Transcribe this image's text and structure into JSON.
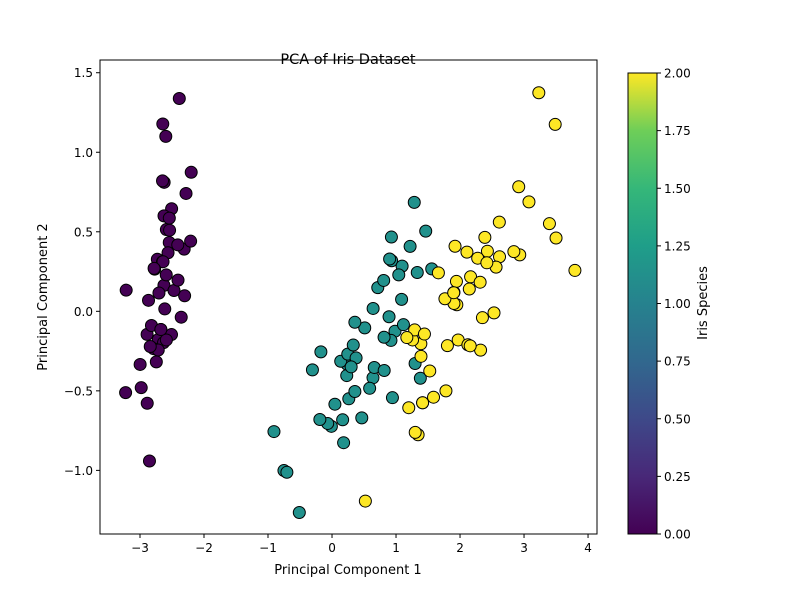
{
  "chart_data": {
    "type": "scatter",
    "title": "PCA of Iris Dataset",
    "xlabel": "Principal Component 1",
    "ylabel": "Principal Component 2",
    "xlim": [
      -3.625,
      4.14
    ],
    "ylim": [
      -1.4,
      1.58
    ],
    "xticks": [
      -3,
      -2,
      -1,
      0,
      1,
      2,
      3,
      4
    ],
    "xtick_labels": [
      "−3",
      "−2",
      "−1",
      "0",
      "1",
      "2",
      "3",
      "4"
    ],
    "yticks": [
      -1.0,
      -0.5,
      0.0,
      0.5,
      1.0,
      1.5
    ],
    "ytick_labels": [
      "−1.0",
      "−0.5",
      "0.0",
      "0.5",
      "1.0",
      "1.5"
    ],
    "grid": false,
    "colormap": "viridis",
    "colorbar": {
      "label": "Iris Species",
      "range": [
        0,
        2
      ],
      "ticks": [
        0,
        0.25,
        0.5,
        0.75,
        1.0,
        1.25,
        1.5,
        1.75,
        2.0
      ],
      "tick_labels": [
        "0.00",
        "0.25",
        "0.50",
        "0.75",
        "1.00",
        "1.25",
        "1.50",
        "1.75",
        "2.00"
      ]
    },
    "marker_edge_color": "#000000",
    "series": [
      {
        "class_value": 0,
        "color": "#440154",
        "points": [
          [
            -2.684,
            0.319
          ],
          [
            -2.714,
            -0.177
          ],
          [
            -2.889,
            -0.145
          ],
          [
            -2.745,
            -0.318
          ],
          [
            -2.729,
            0.327
          ],
          [
            -2.281,
            0.741
          ],
          [
            -2.821,
            -0.089
          ],
          [
            -2.626,
            0.163
          ],
          [
            -2.887,
            -0.578
          ],
          [
            -2.674,
            -0.114
          ],
          [
            -2.506,
            0.645
          ],
          [
            -2.613,
            0.015
          ],
          [
            -2.787,
            -0.235
          ],
          [
            -3.225,
            -0.511
          ],
          [
            -2.644,
            1.178
          ],
          [
            -2.386,
            1.338
          ],
          [
            -2.623,
            0.811
          ],
          [
            -2.648,
            0.312
          ],
          [
            -2.2,
            0.874
          ],
          [
            -2.588,
            0.514
          ],
          [
            -2.31,
            0.391
          ],
          [
            -2.543,
            0.433
          ],
          [
            -3.216,
            0.133
          ],
          [
            -2.303,
            0.098
          ],
          [
            -2.356,
            -0.037
          ],
          [
            -2.508,
            -0.146
          ],
          [
            -2.469,
            0.131
          ],
          [
            -2.562,
            0.368
          ],
          [
            -2.64,
            0.312
          ],
          [
            -2.632,
            -0.197
          ],
          [
            -2.588,
            -0.18
          ],
          [
            -2.41,
            0.418
          ],
          [
            -2.648,
            0.82
          ],
          [
            -2.597,
            1.1
          ],
          [
            -2.674,
            -0.114
          ],
          [
            -2.867,
            0.069
          ],
          [
            -2.625,
            0.6
          ],
          [
            -2.981,
            -0.48
          ],
          [
            -2.59,
            0.229
          ],
          [
            -2.771,
            0.265
          ],
          [
            -2.852,
            -0.941
          ],
          [
            -2.998,
            -0.334
          ],
          [
            -2.406,
            0.196
          ],
          [
            -2.209,
            0.441
          ],
          [
            -2.715,
            -0.243
          ],
          [
            -2.538,
            0.51
          ],
          [
            -2.84,
            -0.221
          ],
          [
            -2.542,
            0.586
          ],
          [
            -2.704,
            0.115
          ],
          [
            -2.78,
            0.27
          ]
        ]
      },
      {
        "class_value": 1,
        "color": "#21918c",
        "points": [
          [
            1.285,
            0.685
          ],
          [
            0.932,
            0.318
          ],
          [
            1.464,
            0.504
          ],
          [
            0.181,
            -0.826
          ],
          [
            1.087,
            0.075
          ],
          [
            0.64,
            -0.418
          ],
          [
            1.095,
            0.284
          ],
          [
            -0.751,
            -1.001
          ],
          [
            1.043,
            0.229
          ],
          [
            -0.01,
            -0.723
          ],
          [
            -0.511,
            -1.265
          ],
          [
            0.511,
            -0.104
          ],
          [
            0.262,
            -0.55
          ],
          [
            0.984,
            -0.125
          ],
          [
            -0.174,
            -0.255
          ],
          [
            0.928,
            0.467
          ],
          [
            0.66,
            -0.353
          ],
          [
            0.236,
            -0.333
          ],
          [
            0.944,
            -0.543
          ],
          [
            0.045,
            -0.584
          ],
          [
            1.116,
            -0.084
          ],
          [
            0.357,
            -0.069
          ],
          [
            1.298,
            -0.328
          ],
          [
            0.921,
            -0.183
          ],
          [
            0.715,
            0.149
          ],
          [
            0.9,
            0.329
          ],
          [
            1.332,
            0.244
          ],
          [
            1.558,
            0.267
          ],
          [
            0.813,
            -0.163
          ],
          [
            -0.306,
            -0.368
          ],
          [
            -0.068,
            -0.705
          ],
          [
            -0.19,
            -0.68
          ],
          [
            0.136,
            -0.314
          ],
          [
            1.38,
            -0.421
          ],
          [
            0.588,
            -0.484
          ],
          [
            0.807,
            0.194
          ],
          [
            1.22,
            0.408
          ],
          [
            0.815,
            -0.372
          ],
          [
            0.246,
            -0.269
          ],
          [
            0.166,
            -0.682
          ],
          [
            0.465,
            -0.67
          ],
          [
            0.891,
            -0.034
          ],
          [
            0.23,
            -0.404
          ],
          [
            -0.705,
            -1.012
          ],
          [
            0.357,
            -0.504
          ],
          [
            0.332,
            -0.212
          ],
          [
            0.376,
            -0.293
          ],
          [
            0.642,
            0.018
          ],
          [
            -0.907,
            -0.756
          ],
          [
            0.299,
            -0.349
          ]
        ]
      },
      {
        "class_value": 2,
        "color": "#fde725",
        "points": [
          [
            2.531,
            -0.01
          ],
          [
            1.415,
            -0.575
          ],
          [
            2.617,
            0.343
          ],
          [
            1.971,
            -0.18
          ],
          [
            2.35,
            -0.04
          ],
          [
            3.397,
            0.551
          ],
          [
            0.521,
            -1.193
          ],
          [
            2.933,
            0.355
          ],
          [
            2.321,
            -0.244
          ],
          [
            2.917,
            0.783
          ],
          [
            1.662,
            0.242
          ],
          [
            1.803,
            -0.216
          ],
          [
            2.165,
            0.217
          ],
          [
            1.345,
            -0.776
          ],
          [
            1.586,
            -0.54
          ],
          [
            1.905,
            0.119
          ],
          [
            1.95,
            0.041
          ],
          [
            3.487,
            1.175
          ],
          [
            3.795,
            0.257
          ],
          [
            1.3,
            -0.761
          ],
          [
            2.428,
            0.378
          ],
          [
            1.199,
            -0.606
          ],
          [
            3.5,
            0.461
          ],
          [
            1.388,
            -0.204
          ],
          [
            2.276,
            0.334
          ],
          [
            2.614,
            0.561
          ],
          [
            1.258,
            -0.18
          ],
          [
            1.291,
            -0.117
          ],
          [
            2.123,
            -0.21
          ],
          [
            2.388,
            0.465
          ],
          [
            2.841,
            0.375
          ],
          [
            3.231,
            1.374
          ],
          [
            2.159,
            -0.217
          ],
          [
            1.444,
            -0.143
          ],
          [
            1.78,
            -0.5
          ],
          [
            3.077,
            0.688
          ],
          [
            2.145,
            0.14
          ],
          [
            1.905,
            0.049
          ],
          [
            1.169,
            -0.165
          ],
          [
            2.108,
            0.372
          ],
          [
            2.314,
            0.183
          ],
          [
            1.922,
            0.409
          ],
          [
            1.415,
            -0.575
          ],
          [
            2.563,
            0.278
          ],
          [
            2.419,
            0.305
          ],
          [
            1.944,
            0.188
          ],
          [
            1.527,
            -0.375
          ],
          [
            1.764,
            0.079
          ],
          [
            1.901,
            0.117
          ],
          [
            1.39,
            -0.283
          ]
        ]
      }
    ]
  }
}
